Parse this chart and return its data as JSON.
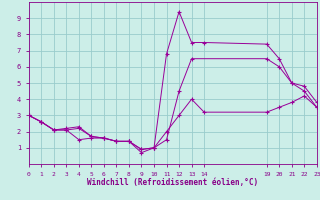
{
  "xlabel": "Windchill (Refroidissement éolien,°C)",
  "bg_color": "#cceee8",
  "grid_color": "#99cccc",
  "line_color": "#990099",
  "marker": "+",
  "xlim": [
    0,
    23
  ],
  "ylim": [
    0,
    10
  ],
  "xtick_positions": [
    0,
    1,
    2,
    3,
    4,
    5,
    6,
    7,
    8,
    9,
    10,
    11,
    12,
    13,
    14,
    19,
    20,
    21,
    22,
    23
  ],
  "xtick_labels": [
    "0",
    "1",
    "2",
    "3",
    "4",
    "5",
    "6",
    "7",
    "8",
    "9",
    "10",
    "11",
    "12",
    "13",
    "14",
    "19",
    "20",
    "21",
    "22",
    "23"
  ],
  "ytick_positions": [
    1,
    2,
    3,
    4,
    5,
    6,
    7,
    8,
    9
  ],
  "ytick_labels": [
    "1",
    "2",
    "3",
    "4",
    "5",
    "6",
    "7",
    "8",
    "9"
  ],
  "lines": [
    {
      "x": [
        0,
        1,
        2,
        3,
        4,
        5,
        6,
        7,
        8,
        9,
        10,
        11,
        12,
        13,
        19,
        20,
        21,
        22,
        23
      ],
      "y": [
        3.0,
        2.6,
        2.1,
        2.2,
        2.3,
        1.7,
        1.6,
        1.4,
        1.4,
        0.9,
        1.0,
        1.5,
        4.5,
        6.5,
        6.5,
        6.0,
        5.0,
        4.5,
        3.5
      ]
    },
    {
      "x": [
        0,
        1,
        2,
        3,
        4,
        5,
        6,
        7,
        8,
        9,
        10,
        11,
        12,
        13,
        14,
        19,
        20,
        21,
        22,
        23
      ],
      "y": [
        3.0,
        2.6,
        2.1,
        2.1,
        1.5,
        1.6,
        1.6,
        1.4,
        1.4,
        0.7,
        1.0,
        6.8,
        9.4,
        7.5,
        7.5,
        7.4,
        6.5,
        5.0,
        4.8,
        3.8
      ]
    },
    {
      "x": [
        0,
        1,
        2,
        3,
        4,
        5,
        6,
        7,
        8,
        9,
        10,
        11,
        12,
        13,
        14,
        19,
        20,
        21,
        22,
        23
      ],
      "y": [
        3.0,
        2.6,
        2.1,
        2.1,
        2.2,
        1.7,
        1.6,
        1.4,
        1.4,
        0.9,
        1.0,
        2.0,
        3.0,
        4.0,
        3.2,
        3.2,
        3.5,
        3.8,
        4.2,
        3.5
      ]
    }
  ]
}
